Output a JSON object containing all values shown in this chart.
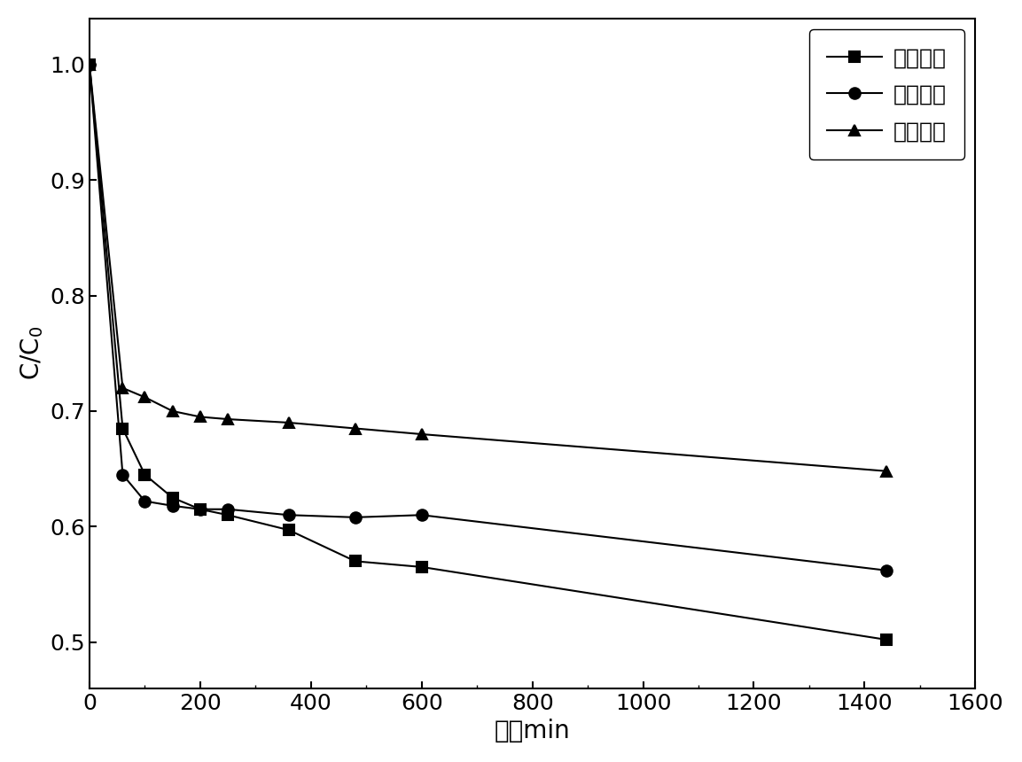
{
  "series": [
    {
      "label": "氮气气氛",
      "marker": "s",
      "x": [
        0,
        60,
        100,
        150,
        200,
        250,
        360,
        480,
        600,
        1440
      ],
      "y": [
        1.0,
        0.685,
        0.645,
        0.625,
        0.615,
        0.61,
        0.597,
        0.57,
        0.565,
        0.502
      ]
    },
    {
      "label": "氩气气氛",
      "marker": "o",
      "x": [
        0,
        60,
        100,
        150,
        200,
        250,
        360,
        480,
        600,
        1440
      ],
      "y": [
        1.0,
        0.645,
        0.622,
        0.618,
        0.615,
        0.615,
        0.61,
        0.608,
        0.61,
        0.562
      ]
    },
    {
      "label": "空气气氛",
      "marker": "^",
      "x": [
        0,
        60,
        100,
        150,
        200,
        250,
        360,
        480,
        600,
        1440
      ],
      "y": [
        1.0,
        0.72,
        0.712,
        0.7,
        0.695,
        0.693,
        0.69,
        0.685,
        0.68,
        0.648
      ]
    }
  ],
  "xlabel": "时间min",
  "xlim": [
    0,
    1600
  ],
  "ylim": [
    0.46,
    1.04
  ],
  "xticks": [
    0,
    200,
    400,
    600,
    800,
    1000,
    1200,
    1400,
    1600
  ],
  "yticks": [
    0.5,
    0.6,
    0.7,
    0.8,
    0.9,
    1.0
  ],
  "line_color": "#000000",
  "marker_color": "#000000",
  "marker_size": 9,
  "linewidth": 1.5,
  "legend_fontsize": 18,
  "axis_fontsize": 20,
  "tick_fontsize": 18,
  "background_color": "#ffffff"
}
